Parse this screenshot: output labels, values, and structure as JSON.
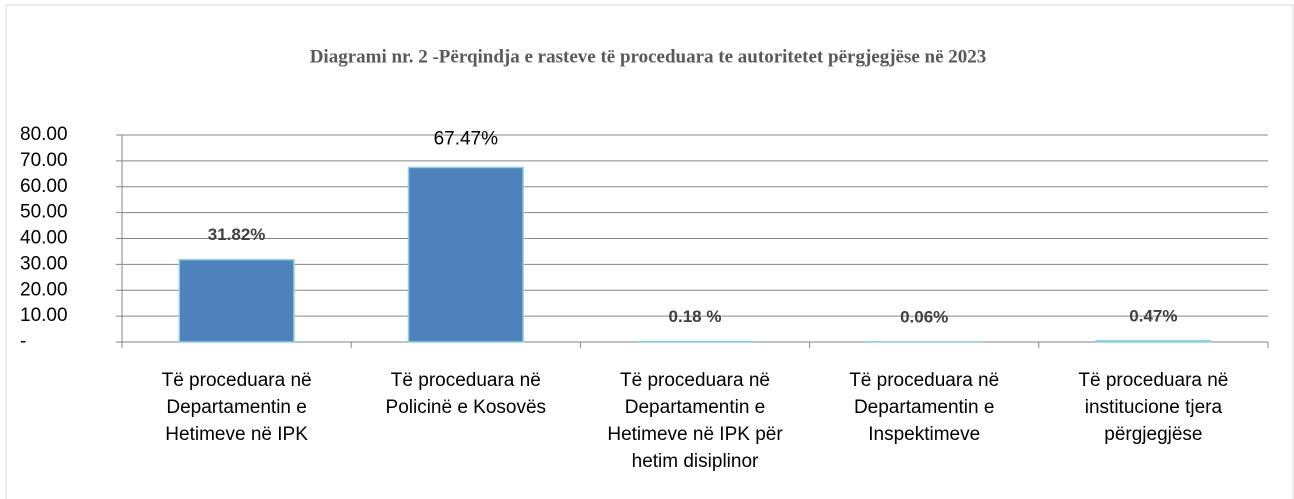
{
  "chart_data": {
    "type": "bar",
    "title": "Diagrami nr. 2 -Përqindja e rasteve të proceduara te autoritetet përgjegjëse në 2023",
    "categories": [
      "Të proceduara në Departamentin e Hetimeve në IPK",
      "Të proceduara në Policinë e Kosovës",
      "Të proceduara në Departamentin e Hetimeve në IPK për hetim disiplinor",
      "Të proceduara në Departamentin e Inspektimeve",
      "Të proceduara në institucione tjera përgjegjëse"
    ],
    "values": [
      31.82,
      67.47,
      0.18,
      0.06,
      0.47
    ],
    "value_labels": [
      "31.82%",
      "67.47%",
      "0.18 %",
      "0.06%",
      "0.47%"
    ],
    "color": "#4f81bd",
    "ylim": [
      0,
      80
    ],
    "yticks": [
      {
        "value": 0,
        "label": "-"
      },
      {
        "value": 10,
        "label": "10.00"
      },
      {
        "value": 20,
        "label": "20.00"
      },
      {
        "value": 30,
        "label": "30.00"
      },
      {
        "value": 40,
        "label": "40.00"
      },
      {
        "value": 50,
        "label": "50.00"
      },
      {
        "value": 60,
        "label": "60.00"
      },
      {
        "value": 70,
        "label": "70.00"
      },
      {
        "value": 80,
        "label": "80.00"
      }
    ],
    "grid": true
  }
}
